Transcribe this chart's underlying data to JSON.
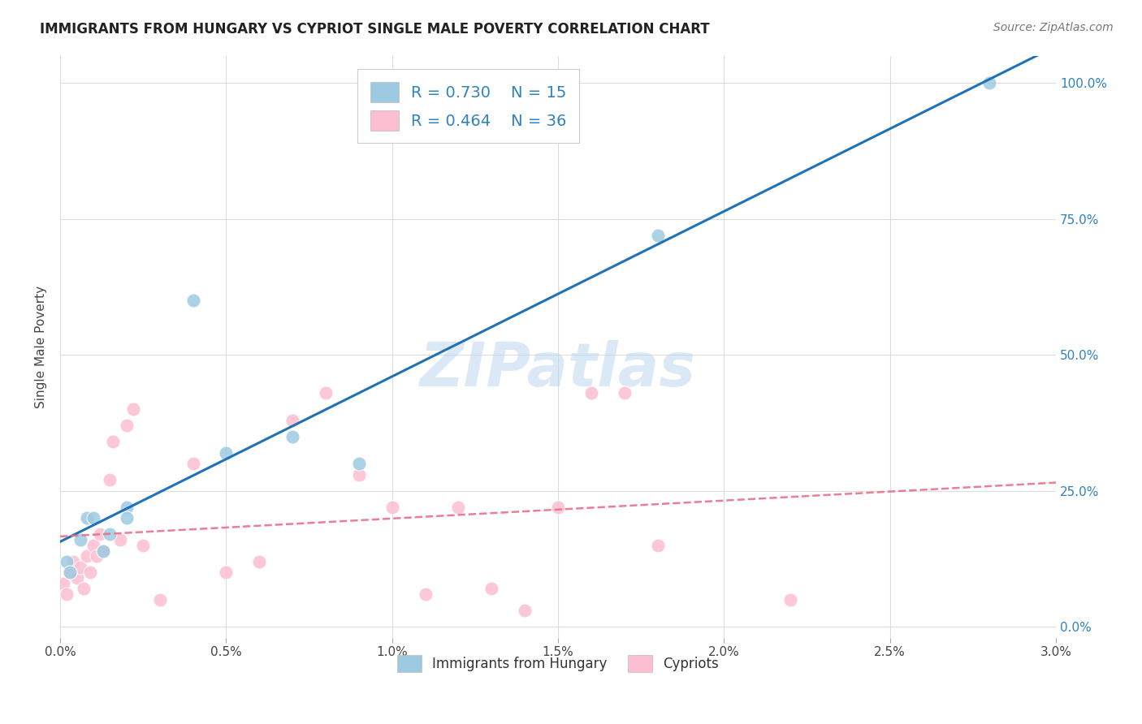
{
  "title": "IMMIGRANTS FROM HUNGARY VS CYPRIOT SINGLE MALE POVERTY CORRELATION CHART",
  "source": "Source: ZipAtlas.com",
  "ylabel": "Single Male Poverty",
  "yticks": [
    "0.0%",
    "25.0%",
    "50.0%",
    "75.0%",
    "100.0%"
  ],
  "ytick_vals": [
    0.0,
    0.25,
    0.5,
    0.75,
    1.0
  ],
  "xlim": [
    0.0,
    0.03
  ],
  "ylim": [
    -0.02,
    1.05
  ],
  "legend_label1": "Immigrants from Hungary",
  "legend_label2": "Cypriots",
  "R1": 0.73,
  "N1": 15,
  "R2": 0.464,
  "N2": 36,
  "color_blue": "#9ecae1",
  "color_blue_line": "#2171b5",
  "color_pink": "#fcbfd2",
  "color_pink_line": "#e8708a",
  "color_blue_text": "#3182bd",
  "watermark": "ZIPatlas",
  "hungary_x": [
    0.0002,
    0.0003,
    0.0006,
    0.0008,
    0.001,
    0.0013,
    0.0015,
    0.002,
    0.002,
    0.004,
    0.005,
    0.007,
    0.009,
    0.018,
    0.028
  ],
  "hungary_y": [
    0.12,
    0.1,
    0.16,
    0.2,
    0.2,
    0.14,
    0.17,
    0.22,
    0.2,
    0.6,
    0.32,
    0.35,
    0.3,
    0.72,
    1.0
  ],
  "cypriot_x": [
    0.0001,
    0.0002,
    0.0003,
    0.0004,
    0.0005,
    0.0006,
    0.0007,
    0.0008,
    0.0009,
    0.001,
    0.0011,
    0.0012,
    0.0013,
    0.0015,
    0.0016,
    0.0018,
    0.002,
    0.0022,
    0.0025,
    0.003,
    0.004,
    0.005,
    0.006,
    0.007,
    0.008,
    0.009,
    0.01,
    0.011,
    0.012,
    0.013,
    0.014,
    0.015,
    0.016,
    0.017,
    0.018,
    0.022
  ],
  "cypriot_y": [
    0.08,
    0.06,
    0.1,
    0.12,
    0.09,
    0.11,
    0.07,
    0.13,
    0.1,
    0.15,
    0.13,
    0.17,
    0.14,
    0.27,
    0.34,
    0.16,
    0.37,
    0.4,
    0.15,
    0.05,
    0.3,
    0.1,
    0.12,
    0.38,
    0.43,
    0.28,
    0.22,
    0.06,
    0.22,
    0.07,
    0.03,
    0.22,
    0.43,
    0.43,
    0.15,
    0.05
  ],
  "background_color": "#ffffff",
  "grid_color": "#dddddd"
}
